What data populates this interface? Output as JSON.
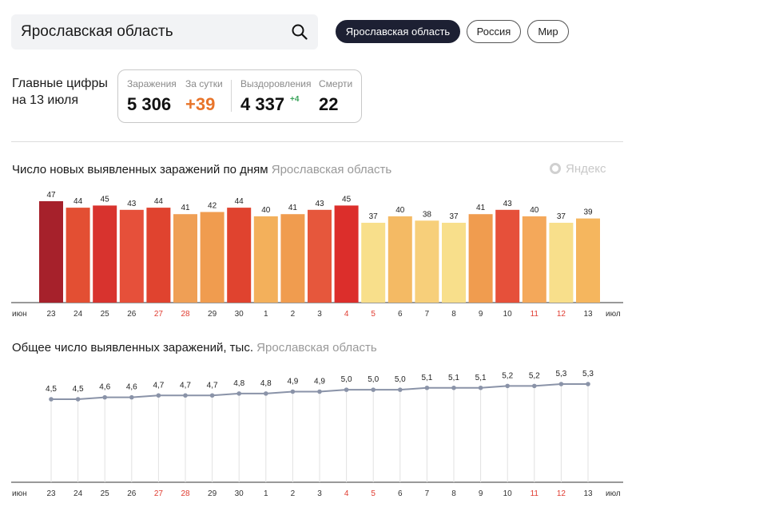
{
  "search": {
    "value": "Ярославская область"
  },
  "tabs": [
    {
      "label": "Ярославская область",
      "active": true
    },
    {
      "label": "Россия",
      "active": false
    },
    {
      "label": "Мир",
      "active": false
    }
  ],
  "key_figures": {
    "title_line1": "Главные цифры",
    "title_line2": "на 13 июля",
    "infections_label": "Заражения",
    "infections_value": "5 306",
    "per_day_label": "За сутки",
    "per_day_value": "+39",
    "recovered_label": "Выздоровления",
    "recovered_value": "4 337",
    "recovered_delta": "+4",
    "deaths_label": "Смерти",
    "deaths_value": "22"
  },
  "watermark": "Яндекс",
  "axis": {
    "start_label": "июн",
    "end_label": "июл",
    "days": [
      "23",
      "24",
      "25",
      "26",
      "27",
      "28",
      "29",
      "30",
      "1",
      "2",
      "3",
      "4",
      "5",
      "6",
      "7",
      "8",
      "9",
      "10",
      "11",
      "12",
      "13"
    ],
    "weekend_indices": [
      4,
      5,
      11,
      12,
      18,
      19
    ],
    "weekday_color": "#333333",
    "weekend_color": "#e03c31"
  },
  "chart_data": [
    {
      "type": "bar",
      "title": "Число новых выявленных заражений по дням",
      "subtitle": "Ярославская область",
      "categories": [
        "23",
        "24",
        "25",
        "26",
        "27",
        "28",
        "29",
        "30",
        "1",
        "2",
        "3",
        "4",
        "5",
        "6",
        "7",
        "8",
        "9",
        "10",
        "11",
        "12",
        "13"
      ],
      "values": [
        47,
        44,
        45,
        43,
        44,
        41,
        42,
        44,
        40,
        41,
        43,
        45,
        37,
        40,
        38,
        37,
        41,
        43,
        40,
        37,
        39
      ],
      "colors": [
        "#a6212b",
        "#e34f33",
        "#d8332e",
        "#e6503a",
        "#e0432f",
        "#ef9f55",
        "#f09c4f",
        "#e0432f",
        "#f3b05b",
        "#f09c4f",
        "#e6573c",
        "#dc2e2b",
        "#f8df8b",
        "#f4ba64",
        "#f7cf7a",
        "#f8df8b",
        "#f09c4f",
        "#e6503a",
        "#f4a85a",
        "#f8df8b",
        "#f5b65e"
      ],
      "ylim": [
        0,
        47
      ]
    },
    {
      "type": "line",
      "title": "Общее число выявленных заражений, тыс.",
      "subtitle": "Ярославская область",
      "categories": [
        "23",
        "24",
        "25",
        "26",
        "27",
        "28",
        "29",
        "30",
        "1",
        "2",
        "3",
        "4",
        "5",
        "6",
        "7",
        "8",
        "9",
        "10",
        "11",
        "12",
        "13"
      ],
      "values": [
        4.5,
        4.5,
        4.6,
        4.6,
        4.7,
        4.7,
        4.7,
        4.8,
        4.8,
        4.9,
        4.9,
        5.0,
        5.0,
        5.0,
        5.1,
        5.1,
        5.1,
        5.2,
        5.2,
        5.3,
        5.3
      ],
      "labels": [
        "4,5",
        "4,5",
        "4,6",
        "4,6",
        "4,7",
        "4,7",
        "4,7",
        "4,8",
        "4,8",
        "4,9",
        "4,9",
        "5,0",
        "5,0",
        "5,0",
        "5,1",
        "5,1",
        "5,1",
        "5,2",
        "5,2",
        "5,3",
        "5,3"
      ],
      "line_color": "#8a93a8"
    }
  ]
}
